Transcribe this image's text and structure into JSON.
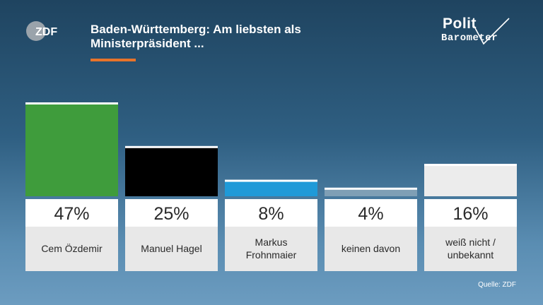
{
  "header": {
    "title_line1": "Baden-Württemberg: Am liebsten als",
    "title_line2": "Ministerpräsident ...",
    "zdf_logo_text": "ZDF",
    "polit_logo_top": "Polit",
    "polit_logo_bottom": "Barometer",
    "accent_color": "#e8732a"
  },
  "chart_data": {
    "type": "bar",
    "title": "Baden-Württemberg: Am liebsten als Ministerpräsident ...",
    "categories": [
      [
        "Cem Özdemir"
      ],
      [
        "Manuel Hagel"
      ],
      [
        "Markus",
        "Frohnmaier"
      ],
      [
        "keinen davon"
      ],
      [
        "weiß nicht /",
        "unbekannt"
      ]
    ],
    "values": [
      47,
      25,
      8,
      4,
      16
    ],
    "value_labels": [
      "47%",
      "25%",
      "8%",
      "4%",
      "16%"
    ],
    "colors": [
      "#3f9c3c",
      "#000000",
      "#1f9ad8",
      "#7f9fb5",
      "#ececec"
    ],
    "ylim": [
      0,
      47
    ],
    "grid": false,
    "legend": "none"
  },
  "footer": {
    "source": "Quelle: ZDF"
  }
}
